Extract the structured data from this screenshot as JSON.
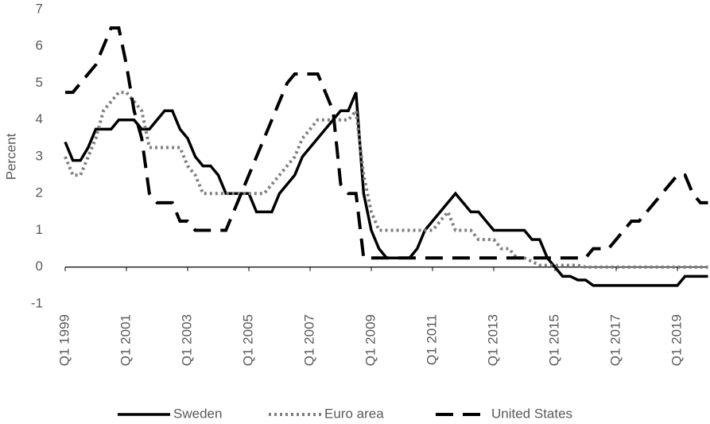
{
  "chart_data": {
    "type": "line",
    "y_label": "Percent",
    "categories": [
      "Q1 1999",
      null,
      null,
      null,
      null,
      null,
      null,
      null,
      "Q1 2001",
      null,
      null,
      null,
      null,
      null,
      null,
      null,
      "Q1 2003",
      null,
      null,
      null,
      null,
      null,
      null,
      null,
      "Q1 2005",
      null,
      null,
      null,
      null,
      null,
      null,
      null,
      "Q1 2007",
      null,
      null,
      null,
      null,
      null,
      null,
      null,
      "Q1 2009",
      null,
      null,
      null,
      null,
      null,
      null,
      null,
      "Q1 2011",
      null,
      null,
      null,
      null,
      null,
      null,
      null,
      "Q1 2013",
      null,
      null,
      null,
      null,
      null,
      null,
      null,
      "Q1 2015",
      null,
      null,
      null,
      null,
      null,
      null,
      null,
      "Q1 2017",
      null,
      null,
      null,
      null,
      null,
      null,
      null,
      "Q1 2019",
      null,
      null,
      null,
      null
    ],
    "series": [
      {
        "name": "Sweden",
        "color": "#000000",
        "style": "solid",
        "values": [
          3.4,
          2.9,
          2.9,
          3.25,
          3.75,
          3.75,
          3.75,
          4.0,
          4.0,
          4.0,
          3.75,
          3.75,
          4.0,
          4.25,
          4.25,
          3.75,
          3.5,
          3.0,
          2.75,
          2.75,
          2.5,
          2.0,
          2.0,
          2.0,
          2.0,
          1.5,
          1.5,
          1.5,
          2.0,
          2.25,
          2.5,
          3.0,
          3.25,
          3.5,
          3.75,
          4.0,
          4.25,
          4.25,
          4.75,
          2.0,
          1.0,
          0.5,
          0.25,
          0.25,
          0.25,
          0.25,
          0.5,
          1.0,
          1.25,
          1.5,
          1.75,
          2.0,
          1.75,
          1.5,
          1.5,
          1.25,
          1.0,
          1.0,
          1.0,
          1.0,
          1.0,
          0.75,
          0.75,
          0.25,
          0.0,
          -0.25,
          -0.25,
          -0.35,
          -0.35,
          -0.5,
          -0.5,
          -0.5,
          -0.5,
          -0.5,
          -0.5,
          -0.5,
          -0.5,
          -0.5,
          -0.5,
          -0.5,
          -0.5,
          -0.25,
          -0.25,
          -0.25,
          -0.25
        ]
      },
      {
        "name": "Euro area",
        "color": "#7f7f7f",
        "style": "dotted",
        "values": [
          3.0,
          2.5,
          2.5,
          3.0,
          3.5,
          4.25,
          4.5,
          4.75,
          4.75,
          4.5,
          4.25,
          3.25,
          3.25,
          3.25,
          3.25,
          3.25,
          2.75,
          2.5,
          2.0,
          2.0,
          2.0,
          2.0,
          2.0,
          2.0,
          2.0,
          2.0,
          2.0,
          2.25,
          2.5,
          2.75,
          3.0,
          3.5,
          3.75,
          4.0,
          4.0,
          4.0,
          4.0,
          4.0,
          4.25,
          2.5,
          1.5,
          1.0,
          1.0,
          1.0,
          1.0,
          1.0,
          1.0,
          1.0,
          1.0,
          1.25,
          1.5,
          1.0,
          1.0,
          1.0,
          0.75,
          0.75,
          0.75,
          0.5,
          0.5,
          0.25,
          0.25,
          0.15,
          0.05,
          0.05,
          0.05,
          0.05,
          0.05,
          0.05,
          0.0,
          0.0,
          0.0,
          0.0,
          0.0,
          0.0,
          0.0,
          0.0,
          0.0,
          0.0,
          0.0,
          0.0,
          0.0,
          0.0,
          0.0,
          0.0,
          0.0
        ]
      },
      {
        "name": "United States",
        "color": "#000000",
        "style": "dashed",
        "values": [
          4.75,
          4.75,
          5.0,
          5.25,
          5.5,
          6.0,
          6.5,
          6.5,
          5.5,
          4.25,
          3.5,
          2.0,
          1.75,
          1.75,
          1.75,
          1.25,
          1.25,
          1.0,
          1.0,
          1.0,
          1.0,
          1.0,
          1.5,
          2.0,
          2.5,
          3.0,
          3.5,
          4.0,
          4.5,
          5.0,
          5.25,
          5.25,
          5.25,
          5.25,
          4.75,
          4.25,
          2.25,
          2.0,
          2.0,
          0.25,
          0.25,
          0.25,
          0.25,
          0.25,
          0.25,
          0.25,
          0.25,
          0.25,
          0.25,
          0.25,
          0.25,
          0.25,
          0.25,
          0.25,
          0.25,
          0.25,
          0.25,
          0.25,
          0.25,
          0.25,
          0.25,
          0.25,
          0.25,
          0.25,
          0.25,
          0.25,
          0.25,
          0.25,
          0.25,
          0.5,
          0.5,
          0.5,
          0.75,
          1.0,
          1.25,
          1.25,
          1.5,
          1.75,
          2.0,
          2.25,
          2.5,
          2.5,
          2.0,
          1.75,
          1.75
        ]
      }
    ],
    "ylim": [
      -1,
      7
    ],
    "yticks": [
      -1,
      0,
      1,
      2,
      3,
      4,
      5,
      6,
      7
    ],
    "grid": false,
    "legend": "bottom"
  }
}
